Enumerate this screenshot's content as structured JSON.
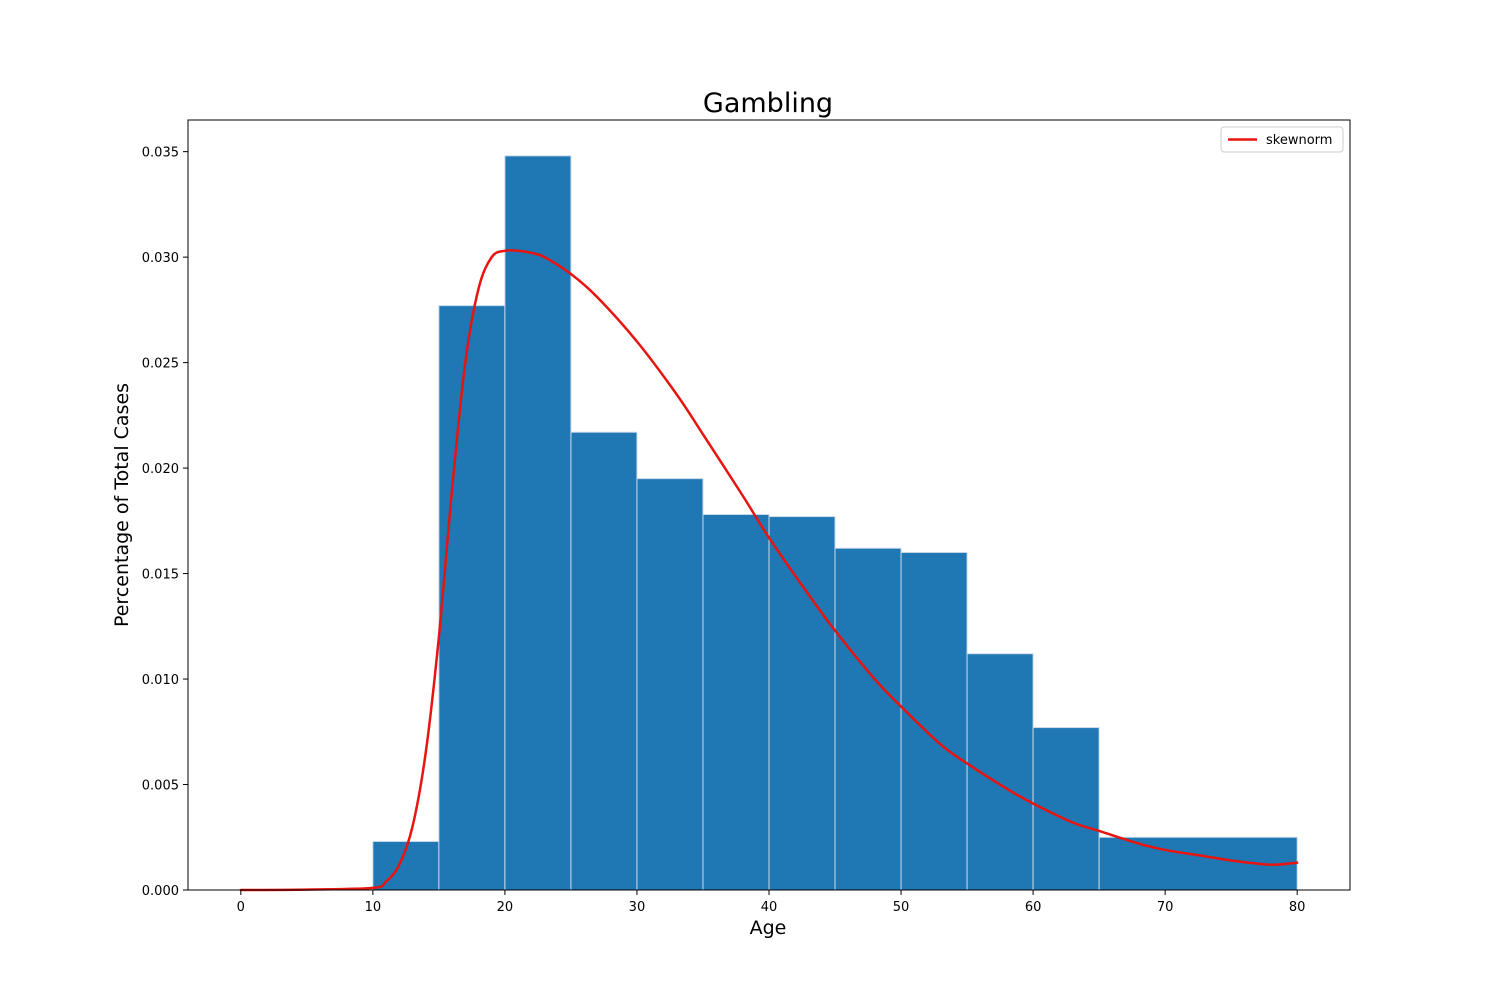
{
  "chart_data": {
    "type": "bar",
    "title": "Gambling",
    "xlabel": "Age",
    "ylabel": "Percentage of Total Cases",
    "xlim": [
      -4,
      84
    ],
    "ylim": [
      0,
      0.0365
    ],
    "x_ticks": [
      0,
      10,
      20,
      30,
      40,
      50,
      60,
      70,
      80
    ],
    "x_tick_labels": [
      "0",
      "10",
      "20",
      "30",
      "40",
      "50",
      "60",
      "70",
      "80"
    ],
    "y_ticks": [
      0,
      0.005,
      0.01,
      0.015,
      0.02,
      0.025,
      0.03,
      0.035
    ],
    "y_tick_labels": [
      "0.000",
      "0.005",
      "0.010",
      "0.015",
      "0.020",
      "0.025",
      "0.030",
      "0.035"
    ],
    "grid": false,
    "legend_position": "top-right",
    "bar_color": "#1f77b4",
    "bar_edge_color": "#c9d9ea",
    "bins": [
      {
        "x0": 10,
        "x1": 15,
        "value": 0.0023
      },
      {
        "x0": 15,
        "x1": 20,
        "value": 0.0277
      },
      {
        "x0": 20,
        "x1": 25,
        "value": 0.0348
      },
      {
        "x0": 25,
        "x1": 30,
        "value": 0.0217
      },
      {
        "x0": 30,
        "x1": 35,
        "value": 0.0195
      },
      {
        "x0": 35,
        "x1": 40,
        "value": 0.0178
      },
      {
        "x0": 40,
        "x1": 45,
        "value": 0.0177
      },
      {
        "x0": 45,
        "x1": 50,
        "value": 0.0162
      },
      {
        "x0": 50,
        "x1": 55,
        "value": 0.016
      },
      {
        "x0": 55,
        "x1": 60,
        "value": 0.0112
      },
      {
        "x0": 60,
        "x1": 65,
        "value": 0.0077
      },
      {
        "x0": 65,
        "x1": 80,
        "value": 0.0025
      }
    ],
    "series": [
      {
        "name": "skewnorm",
        "type": "line",
        "color": "#e8140f",
        "x": [
          0,
          5,
          10,
          11,
          12,
          13,
          14,
          15,
          16,
          17,
          18,
          19,
          20,
          21,
          22,
          23,
          25,
          27,
          30,
          33,
          35,
          38,
          40,
          43,
          45,
          48,
          50,
          53,
          55,
          58,
          60,
          63,
          65,
          68,
          70,
          73,
          75,
          78,
          80
        ],
        "y": [
          0.0,
          2e-05,
          0.0001,
          0.0004,
          0.0012,
          0.003,
          0.0065,
          0.012,
          0.019,
          0.025,
          0.0285,
          0.03,
          0.0303,
          0.0303,
          0.0302,
          0.03,
          0.0292,
          0.0281,
          0.026,
          0.0235,
          0.0216,
          0.0187,
          0.0167,
          0.014,
          0.0123,
          0.01,
          0.0087,
          0.0069,
          0.006,
          0.0048,
          0.0041,
          0.0032,
          0.0028,
          0.0022,
          0.0019,
          0.0016,
          0.0014,
          0.0012,
          0.0013
        ]
      }
    ]
  }
}
